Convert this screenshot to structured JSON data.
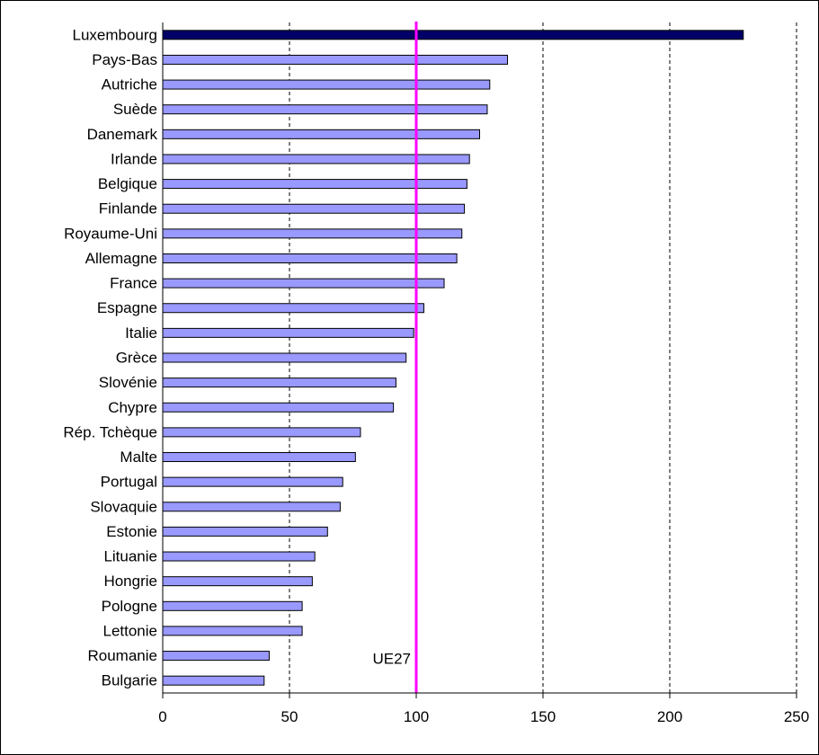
{
  "chart_data": {
    "type": "bar",
    "orientation": "horizontal",
    "categories": [
      "Luxembourg",
      "Pays-Bas",
      "Autriche",
      "Suède",
      "Danemark",
      "Irlande",
      "Belgique",
      "Finlande",
      "Royaume-Uni",
      "Allemagne",
      "France",
      "Espagne",
      "Italie",
      "Grèce",
      "Slovénie",
      "Chypre",
      "Rép. Tchèque",
      "Malte",
      "Portugal",
      "Slovaquie",
      "Estonie",
      "Lituanie",
      "Hongrie",
      "Pologne",
      "Lettonie",
      "Roumanie",
      "Bulgarie"
    ],
    "values": [
      229,
      136,
      129,
      128,
      125,
      121,
      120,
      119,
      118,
      116,
      111,
      103,
      99,
      96,
      92,
      91,
      78,
      76,
      71,
      70,
      65,
      60,
      59,
      55,
      55,
      42,
      40
    ],
    "highlight": {
      "category": "Luxembourg",
      "color": "#000066"
    },
    "bar_color": "#9999ff",
    "bar_stroke": "#000000",
    "xlim": [
      0,
      250
    ],
    "xticks": [
      0,
      50,
      100,
      150,
      200,
      250
    ],
    "grid": {
      "vertical": "dashed",
      "horizontal": "none"
    },
    "reference_line": {
      "value": 100,
      "label": "UE27",
      "color": "#ff00ff"
    },
    "title": "",
    "xlabel": "",
    "ylabel": ""
  }
}
